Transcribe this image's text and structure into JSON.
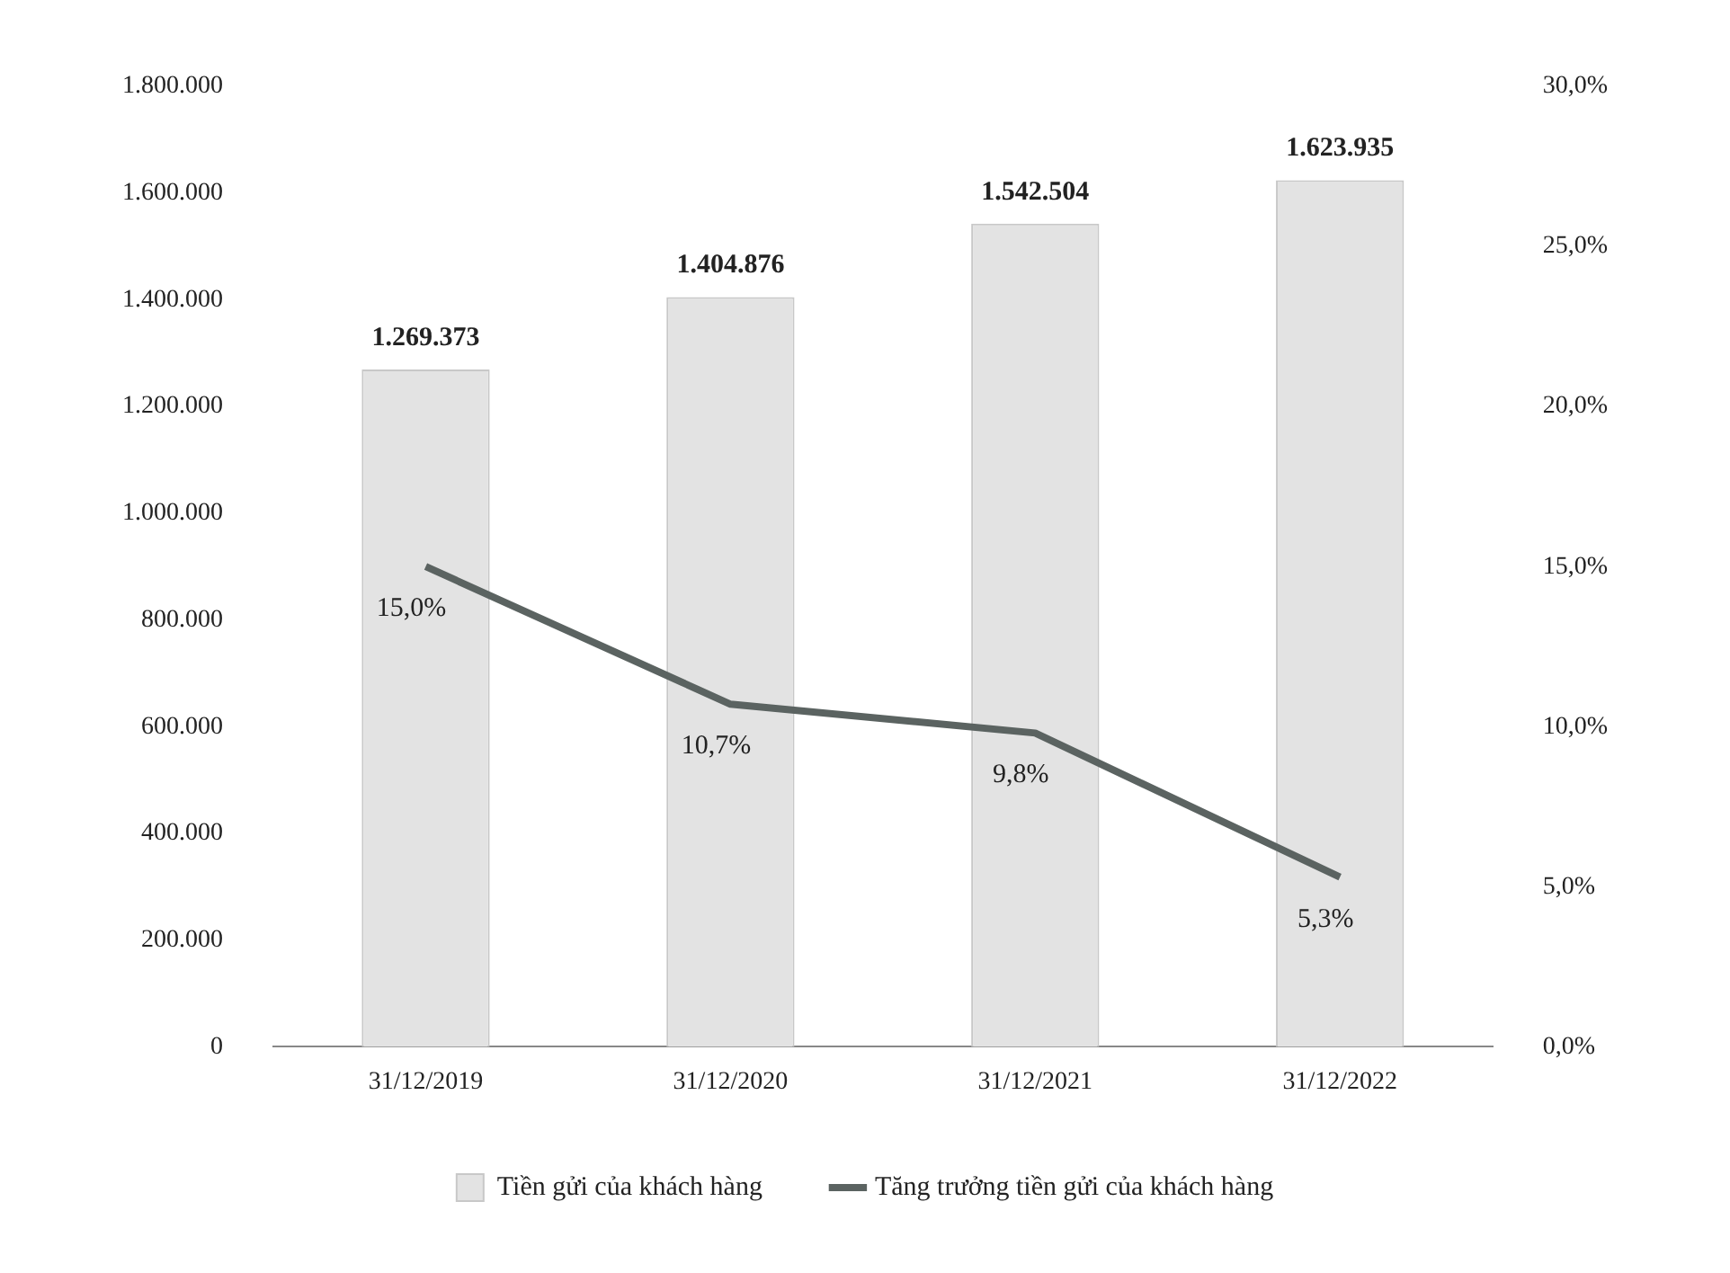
{
  "chart_data": {
    "type": "bar",
    "categories": [
      "31/12/2019",
      "31/12/2020",
      "31/12/2021",
      "31/12/2022"
    ],
    "series": [
      {
        "name": "Tiền gửi của khách hàng",
        "color": "#e3e3e3",
        "values": [
          1269373,
          1404876,
          1542504,
          1623935
        ],
        "value_labels": [
          "1.269.373",
          "1.404.876",
          "1.542.504",
          "1.623.935"
        ]
      },
      {
        "name": "Tăng trưởng tiền gửi của khách hàng",
        "type": "line",
        "axis": "y2",
        "color": "#5b6361",
        "values": [
          15.0,
          10.7,
          9.8,
          5.3
        ],
        "value_labels": [
          "15,0%",
          "10,7%",
          "9,8%",
          "5,3%"
        ]
      }
    ],
    "ylim": [
      0,
      1800000
    ],
    "yticks": [
      {
        "value": 0,
        "label": "0"
      },
      {
        "value": 200000,
        "label": "200.000"
      },
      {
        "value": 400000,
        "label": "400.000"
      },
      {
        "value": 600000,
        "label": "600.000"
      },
      {
        "value": 800000,
        "label": "800.000"
      },
      {
        "value": 1000000,
        "label": "1.000.000"
      },
      {
        "value": 1200000,
        "label": "1.200.000"
      },
      {
        "value": 1400000,
        "label": "1.400.000"
      },
      {
        "value": 1600000,
        "label": "1.600.000"
      },
      {
        "value": 1800000,
        "label": "1.800.000"
      }
    ],
    "y2lim": [
      0,
      30
    ],
    "y2ticks": [
      {
        "value": 0,
        "label": "0,0%"
      },
      {
        "value": 5,
        "label": "5,0%"
      },
      {
        "value": 10,
        "label": "10,0%"
      },
      {
        "value": 15,
        "label": "15,0%"
      },
      {
        "value": 20,
        "label": "20,0%"
      },
      {
        "value": 25,
        "label": "25,0%"
      },
      {
        "value": 30,
        "label": "30,0%"
      }
    ],
    "grid": false,
    "legend": "bottom",
    "marker": "none",
    "line_style": "solid"
  }
}
